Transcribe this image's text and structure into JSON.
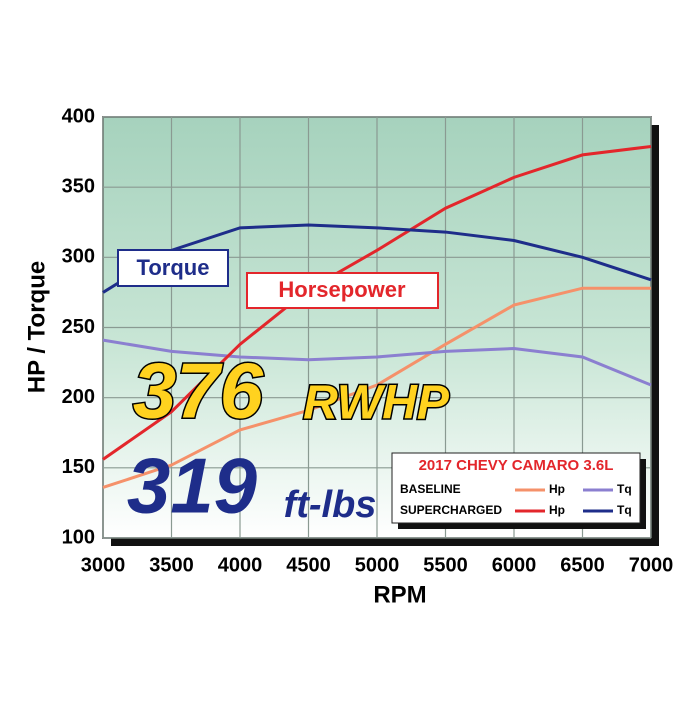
{
  "chart_data": {
    "type": "line",
    "xlabel": "RPM",
    "ylabel": "HP / Torque",
    "x": [
      3000,
      3500,
      4000,
      4500,
      5000,
      5500,
      6000,
      6500,
      7000
    ],
    "xlim": [
      3000,
      7000
    ],
    "xticks": [
      3000,
      3500,
      4000,
      4500,
      5000,
      5500,
      6000,
      6500,
      7000
    ],
    "ylim": [
      100,
      400
    ],
    "yticks": [
      100,
      150,
      200,
      250,
      300,
      350,
      400
    ],
    "grid": true,
    "series": [
      {
        "name": "Hp",
        "color": "#f5916a",
        "values": [
          136,
          152,
          177,
          191,
          209,
          238,
          266,
          278,
          278
        ]
      },
      {
        "name": "Tq",
        "color": "#8b7fd0",
        "values": [
          241,
          233,
          229,
          227,
          229,
          233,
          235,
          229,
          209
        ]
      },
      {
        "name": "Hp",
        "color": "#e3262b",
        "values": [
          156,
          190,
          238,
          277,
          305,
          335,
          357,
          373,
          379
        ]
      },
      {
        "name": "Tq",
        "color": "#1e2d8a",
        "values": [
          275,
          305,
          321,
          323,
          321,
          318,
          312,
          300,
          284
        ]
      }
    ],
    "legend": {
      "title": "2017 CHEVY CAMARO 3.6L",
      "groups": [
        "BASELINE",
        "SUPERCHARGED"
      ]
    },
    "torque_callout": "Torque",
    "hp_callout": "Horsepower",
    "peak_hp": 376,
    "peak_hp_unit": "RWHP",
    "peak_tq": 319,
    "peak_tq_unit": "ft-lbs"
  }
}
